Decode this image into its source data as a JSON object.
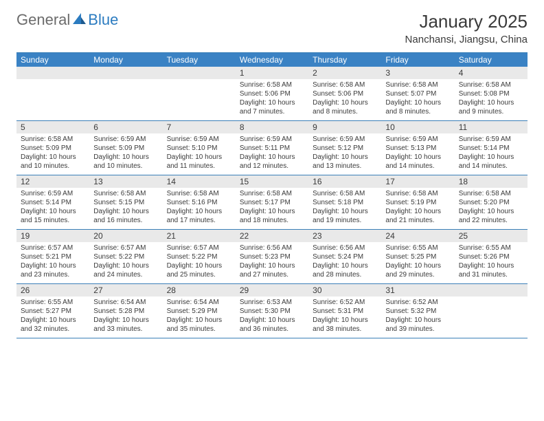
{
  "logo": {
    "general": "General",
    "blue": "Blue"
  },
  "title": "January 2025",
  "location": "Nanchansi, Jiangsu, China",
  "colors": {
    "header_bg": "#3a82c4",
    "header_text": "#ffffff",
    "daynum_bg": "#e9e9e9",
    "text": "#3a3a3a",
    "rule": "#3a7fb8",
    "logo_gray": "#6b6b6b",
    "logo_blue": "#2b7bc0"
  },
  "day_names": [
    "Sunday",
    "Monday",
    "Tuesday",
    "Wednesday",
    "Thursday",
    "Friday",
    "Saturday"
  ],
  "weeks": [
    [
      {
        "n": "",
        "sr": "",
        "ss": "",
        "dl": ""
      },
      {
        "n": "",
        "sr": "",
        "ss": "",
        "dl": ""
      },
      {
        "n": "",
        "sr": "",
        "ss": "",
        "dl": ""
      },
      {
        "n": "1",
        "sr": "Sunrise: 6:58 AM",
        "ss": "Sunset: 5:06 PM",
        "dl": "Daylight: 10 hours and 7 minutes."
      },
      {
        "n": "2",
        "sr": "Sunrise: 6:58 AM",
        "ss": "Sunset: 5:06 PM",
        "dl": "Daylight: 10 hours and 8 minutes."
      },
      {
        "n": "3",
        "sr": "Sunrise: 6:58 AM",
        "ss": "Sunset: 5:07 PM",
        "dl": "Daylight: 10 hours and 8 minutes."
      },
      {
        "n": "4",
        "sr": "Sunrise: 6:58 AM",
        "ss": "Sunset: 5:08 PM",
        "dl": "Daylight: 10 hours and 9 minutes."
      }
    ],
    [
      {
        "n": "5",
        "sr": "Sunrise: 6:58 AM",
        "ss": "Sunset: 5:09 PM",
        "dl": "Daylight: 10 hours and 10 minutes."
      },
      {
        "n": "6",
        "sr": "Sunrise: 6:59 AM",
        "ss": "Sunset: 5:09 PM",
        "dl": "Daylight: 10 hours and 10 minutes."
      },
      {
        "n": "7",
        "sr": "Sunrise: 6:59 AM",
        "ss": "Sunset: 5:10 PM",
        "dl": "Daylight: 10 hours and 11 minutes."
      },
      {
        "n": "8",
        "sr": "Sunrise: 6:59 AM",
        "ss": "Sunset: 5:11 PM",
        "dl": "Daylight: 10 hours and 12 minutes."
      },
      {
        "n": "9",
        "sr": "Sunrise: 6:59 AM",
        "ss": "Sunset: 5:12 PM",
        "dl": "Daylight: 10 hours and 13 minutes."
      },
      {
        "n": "10",
        "sr": "Sunrise: 6:59 AM",
        "ss": "Sunset: 5:13 PM",
        "dl": "Daylight: 10 hours and 14 minutes."
      },
      {
        "n": "11",
        "sr": "Sunrise: 6:59 AM",
        "ss": "Sunset: 5:14 PM",
        "dl": "Daylight: 10 hours and 14 minutes."
      }
    ],
    [
      {
        "n": "12",
        "sr": "Sunrise: 6:59 AM",
        "ss": "Sunset: 5:14 PM",
        "dl": "Daylight: 10 hours and 15 minutes."
      },
      {
        "n": "13",
        "sr": "Sunrise: 6:58 AM",
        "ss": "Sunset: 5:15 PM",
        "dl": "Daylight: 10 hours and 16 minutes."
      },
      {
        "n": "14",
        "sr": "Sunrise: 6:58 AM",
        "ss": "Sunset: 5:16 PM",
        "dl": "Daylight: 10 hours and 17 minutes."
      },
      {
        "n": "15",
        "sr": "Sunrise: 6:58 AM",
        "ss": "Sunset: 5:17 PM",
        "dl": "Daylight: 10 hours and 18 minutes."
      },
      {
        "n": "16",
        "sr": "Sunrise: 6:58 AM",
        "ss": "Sunset: 5:18 PM",
        "dl": "Daylight: 10 hours and 19 minutes."
      },
      {
        "n": "17",
        "sr": "Sunrise: 6:58 AM",
        "ss": "Sunset: 5:19 PM",
        "dl": "Daylight: 10 hours and 21 minutes."
      },
      {
        "n": "18",
        "sr": "Sunrise: 6:58 AM",
        "ss": "Sunset: 5:20 PM",
        "dl": "Daylight: 10 hours and 22 minutes."
      }
    ],
    [
      {
        "n": "19",
        "sr": "Sunrise: 6:57 AM",
        "ss": "Sunset: 5:21 PM",
        "dl": "Daylight: 10 hours and 23 minutes."
      },
      {
        "n": "20",
        "sr": "Sunrise: 6:57 AM",
        "ss": "Sunset: 5:22 PM",
        "dl": "Daylight: 10 hours and 24 minutes."
      },
      {
        "n": "21",
        "sr": "Sunrise: 6:57 AM",
        "ss": "Sunset: 5:22 PM",
        "dl": "Daylight: 10 hours and 25 minutes."
      },
      {
        "n": "22",
        "sr": "Sunrise: 6:56 AM",
        "ss": "Sunset: 5:23 PM",
        "dl": "Daylight: 10 hours and 27 minutes."
      },
      {
        "n": "23",
        "sr": "Sunrise: 6:56 AM",
        "ss": "Sunset: 5:24 PM",
        "dl": "Daylight: 10 hours and 28 minutes."
      },
      {
        "n": "24",
        "sr": "Sunrise: 6:55 AM",
        "ss": "Sunset: 5:25 PM",
        "dl": "Daylight: 10 hours and 29 minutes."
      },
      {
        "n": "25",
        "sr": "Sunrise: 6:55 AM",
        "ss": "Sunset: 5:26 PM",
        "dl": "Daylight: 10 hours and 31 minutes."
      }
    ],
    [
      {
        "n": "26",
        "sr": "Sunrise: 6:55 AM",
        "ss": "Sunset: 5:27 PM",
        "dl": "Daylight: 10 hours and 32 minutes."
      },
      {
        "n": "27",
        "sr": "Sunrise: 6:54 AM",
        "ss": "Sunset: 5:28 PM",
        "dl": "Daylight: 10 hours and 33 minutes."
      },
      {
        "n": "28",
        "sr": "Sunrise: 6:54 AM",
        "ss": "Sunset: 5:29 PM",
        "dl": "Daylight: 10 hours and 35 minutes."
      },
      {
        "n": "29",
        "sr": "Sunrise: 6:53 AM",
        "ss": "Sunset: 5:30 PM",
        "dl": "Daylight: 10 hours and 36 minutes."
      },
      {
        "n": "30",
        "sr": "Sunrise: 6:52 AM",
        "ss": "Sunset: 5:31 PM",
        "dl": "Daylight: 10 hours and 38 minutes."
      },
      {
        "n": "31",
        "sr": "Sunrise: 6:52 AM",
        "ss": "Sunset: 5:32 PM",
        "dl": "Daylight: 10 hours and 39 minutes."
      },
      {
        "n": "",
        "sr": "",
        "ss": "",
        "dl": ""
      }
    ]
  ]
}
